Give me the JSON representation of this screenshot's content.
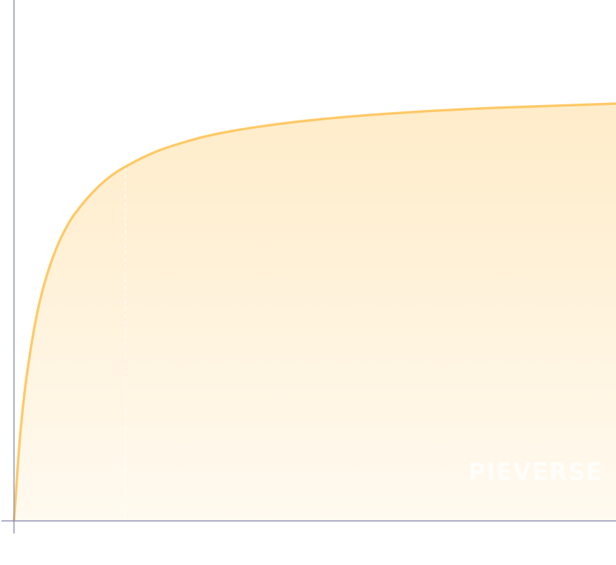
{
  "chart_data": {
    "type": "area",
    "x": [
      0,
      0.01,
      0.02,
      0.04,
      0.06,
      0.08,
      0.1,
      0.15,
      0.185,
      0.25,
      0.35,
      0.5,
      0.65,
      0.8,
      1.0
    ],
    "values": [
      0,
      0.161,
      0.269,
      0.407,
      0.491,
      0.548,
      0.588,
      0.652,
      0.68,
      0.715,
      0.746,
      0.77,
      0.784,
      0.793,
      0.801
    ],
    "color": "#ffc966",
    "xlim": [
      0,
      1
    ],
    "ylim": [
      0,
      1
    ],
    "highlight_index": 8,
    "watermark": "PIEVERSE"
  }
}
